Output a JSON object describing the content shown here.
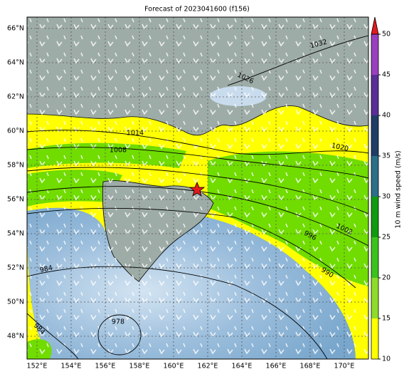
{
  "title": "Forecast of 2023041600 (f156)",
  "lat_labels": [
    "66°N",
    "64°N",
    "62°N",
    "60°N",
    "58°N",
    "56°N",
    "54°N",
    "52°N",
    "50°N",
    "48°N"
  ],
  "lon_labels": [
    "152°E",
    "154°E",
    "156°E",
    "158°E",
    "160°E",
    "162°E",
    "164°E",
    "166°E",
    "168°E",
    "170°E"
  ],
  "contour_labels": [
    "1032",
    "1026",
    "1014",
    "1008",
    "1020",
    "1002",
    "996",
    "990",
    "984",
    "978",
    "984"
  ],
  "colorbar": {
    "label": "10 m wind speed (m/s)",
    "range": [
      10,
      50
    ],
    "ticks": [
      10,
      15,
      20,
      25,
      30,
      35,
      40,
      45,
      50
    ],
    "colors": [
      "#ffff00",
      "#8fdb2a",
      "#3cc21c",
      "#109a10",
      "#2b6f88",
      "#1f3d66",
      "#5b2d97",
      "#9a3fbf"
    ],
    "extend_color": "#e31a1c"
  }
}
